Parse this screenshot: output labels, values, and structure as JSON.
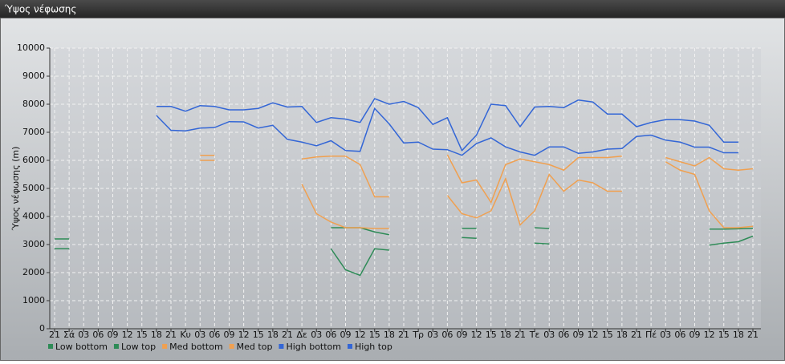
{
  "chart_data": {
    "type": "line",
    "title": "Ύψος νέφωσης",
    "y_label": "Ύψος νέφωσης (m)",
    "categories": [
      "21",
      "Σά",
      "03",
      "06",
      "09",
      "12",
      "15",
      "18",
      "21",
      "Κυ",
      "03",
      "06",
      "09",
      "12",
      "15",
      "18",
      "21",
      "Δε",
      "03",
      "06",
      "09",
      "12",
      "15",
      "18",
      "21",
      "Τρ",
      "03",
      "06",
      "09",
      "12",
      "15",
      "18",
      "21",
      "Τε",
      "03",
      "06",
      "09",
      "12",
      "15",
      "18",
      "21",
      "Πέ",
      "03",
      "06",
      "09",
      "12",
      "15",
      "18",
      "21"
    ],
    "ylim": [
      0,
      10000
    ],
    "yticks": [
      0,
      1000,
      2000,
      3000,
      4000,
      5000,
      6000,
      7000,
      8000,
      9000,
      10000
    ],
    "grid": true,
    "series": [
      {
        "name": "Low bottom",
        "color": "#2e8b57",
        "values": [
          2850,
          2850,
          null,
          null,
          null,
          null,
          null,
          null,
          null,
          null,
          null,
          null,
          null,
          null,
          null,
          null,
          null,
          null,
          null,
          2850,
          2100,
          1900,
          2850,
          2800,
          null,
          null,
          null,
          null,
          3250,
          3220,
          null,
          null,
          null,
          3050,
          3020,
          null,
          null,
          null,
          null,
          null,
          null,
          null,
          null,
          null,
          null,
          2980,
          3050,
          3100,
          3300
        ]
      },
      {
        "name": "Low top",
        "color": "#2e8b57",
        "values": [
          3200,
          3200,
          null,
          null,
          null,
          null,
          null,
          null,
          null,
          null,
          null,
          null,
          null,
          null,
          null,
          null,
          null,
          null,
          null,
          3600,
          3600,
          3600,
          3450,
          3350,
          null,
          null,
          null,
          null,
          3580,
          3580,
          null,
          null,
          null,
          3600,
          3570,
          null,
          null,
          null,
          null,
          null,
          null,
          null,
          null,
          null,
          null,
          3550,
          3550,
          3560,
          3580
        ]
      },
      {
        "name": "Med bottom",
        "color": "#f0a050",
        "values": [
          null,
          null,
          null,
          null,
          null,
          null,
          null,
          null,
          null,
          null,
          6000,
          6000,
          null,
          null,
          null,
          null,
          null,
          5150,
          4100,
          3800,
          3600,
          3600,
          3570,
          3570,
          null,
          null,
          null,
          4750,
          4100,
          3950,
          4200,
          5350,
          3700,
          4200,
          5500,
          4900,
          5300,
          5200,
          4900,
          4900,
          null,
          null,
          5950,
          5650,
          5500,
          4200,
          3600,
          3600,
          3650
        ]
      },
      {
        "name": "Med top",
        "color": "#f0a050",
        "values": [
          null,
          null,
          null,
          null,
          null,
          null,
          null,
          null,
          null,
          null,
          6180,
          6180,
          null,
          null,
          null,
          null,
          null,
          6050,
          6120,
          6150,
          6150,
          5850,
          4700,
          4700,
          null,
          null,
          null,
          6200,
          5200,
          5300,
          4500,
          5850,
          6050,
          5950,
          5850,
          5650,
          6100,
          6100,
          6100,
          6150,
          null,
          null,
          6100,
          5950,
          5800,
          6100,
          5700,
          5650,
          5700
        ]
      },
      {
        "name": "High bottom",
        "color": "#3366d6",
        "values": [
          null,
          null,
          null,
          null,
          null,
          null,
          null,
          7600,
          7070,
          7050,
          7150,
          7170,
          7380,
          7370,
          7150,
          7250,
          6750,
          6650,
          6520,
          6700,
          6350,
          6320,
          7850,
          7300,
          6620,
          6650,
          6400,
          6380,
          6180,
          6600,
          6800,
          6480,
          6300,
          6180,
          6480,
          6480,
          6250,
          6300,
          6400,
          6420,
          6850,
          6900,
          6720,
          6650,
          6470,
          6470,
          6270,
          6270,
          null
        ]
      },
      {
        "name": "High top",
        "color": "#3366d6",
        "values": [
          null,
          null,
          null,
          null,
          null,
          null,
          null,
          7920,
          7920,
          7750,
          7950,
          7920,
          7800,
          7800,
          7850,
          8050,
          7900,
          7920,
          7350,
          7520,
          7470,
          7350,
          8200,
          8000,
          8100,
          7880,
          7280,
          7520,
          6350,
          6900,
          8000,
          7950,
          7200,
          7900,
          7920,
          7880,
          8150,
          8080,
          7650,
          7650,
          7200,
          7350,
          7450,
          7450,
          7400,
          7250,
          6650,
          6650,
          null
        ]
      }
    ]
  }
}
